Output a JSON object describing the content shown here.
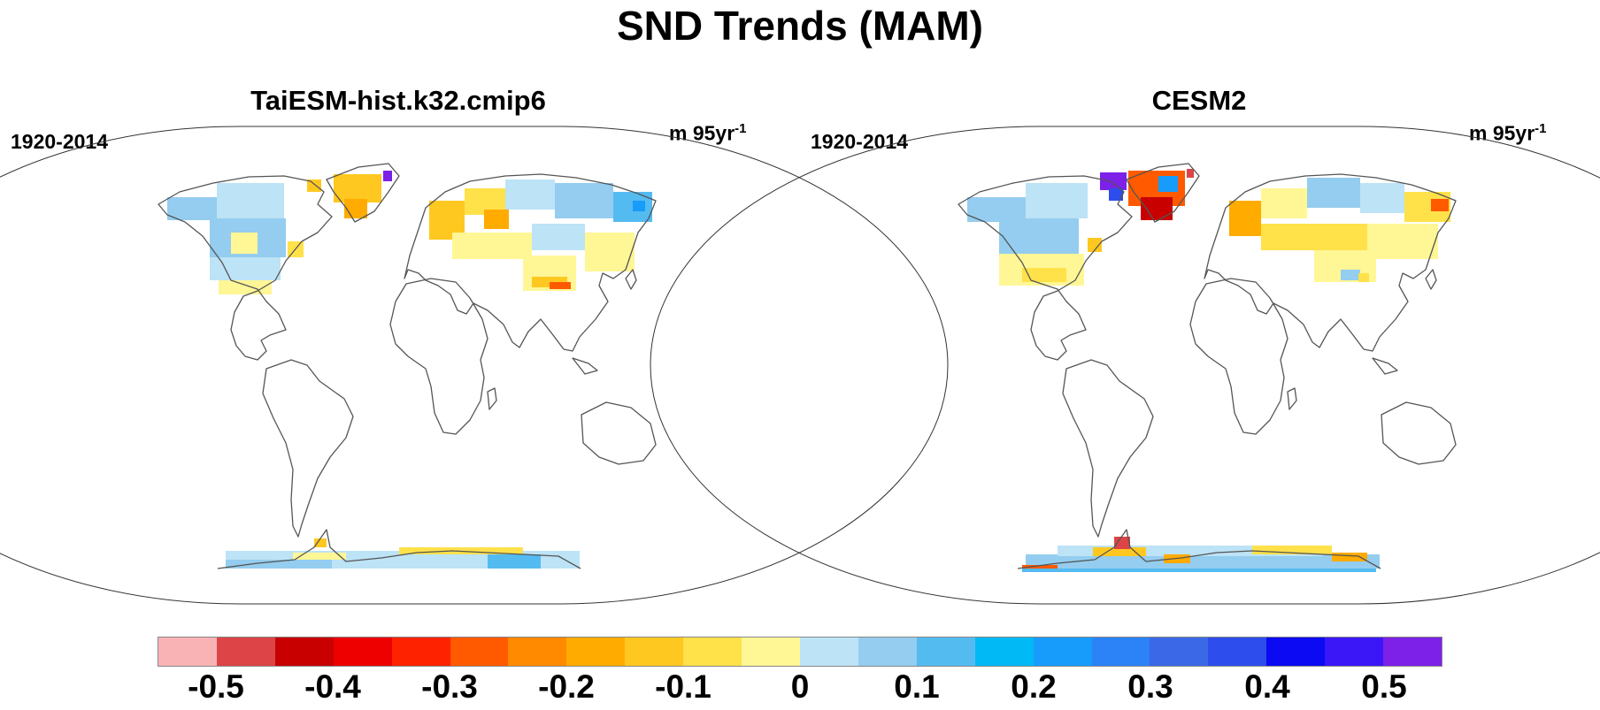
{
  "title": "SND Trends (MAM)",
  "panels": [
    {
      "title": "TaiESM-hist.k32.cmip6",
      "period": "1920-2014",
      "units_prefix": "m 95yr",
      "units_exp": "-1"
    },
    {
      "title": "CESM2",
      "period": "1920-2014",
      "units_prefix": "m 95yr",
      "units_exp": "-1"
    }
  ],
  "colorbar": {
    "colors": [
      "#f9b3b5",
      "#dc4447",
      "#c80000",
      "#ee0000",
      "#ff2200",
      "#ff5a00",
      "#ff8a00",
      "#ffab00",
      "#ffc820",
      "#ffe14a",
      "#fff696",
      "#bde3f6",
      "#94cdef",
      "#54bbf1",
      "#00b9f5",
      "#189cfb",
      "#2b83f7",
      "#3a68e6",
      "#2d4dec",
      "#0b0af2",
      "#3b17f7",
      "#7d20e8"
    ],
    "labels": [
      "-0.5",
      "-0.4",
      "-0.3",
      "-0.2",
      "-0.1",
      "0",
      "0.1",
      "0.2",
      "0.3",
      "0.4",
      "0.5"
    ]
  }
}
